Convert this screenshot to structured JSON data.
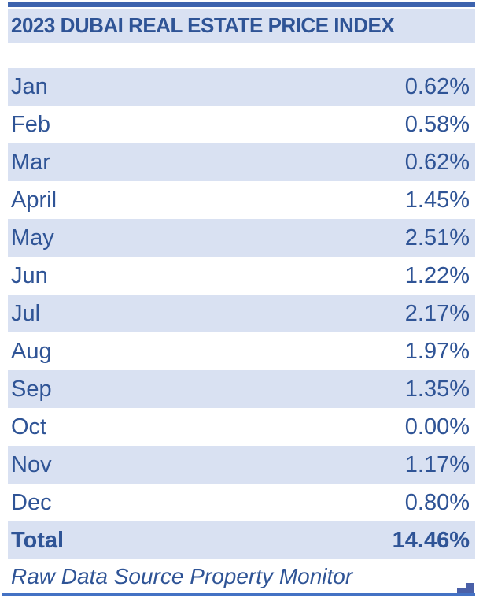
{
  "header": {
    "title": "2023 DUBAI REAL ESTATE PRICE INDEX"
  },
  "table": {
    "rows": [
      {
        "label": "Jan",
        "value": "0.62%"
      },
      {
        "label": "Feb",
        "value": "0.58%"
      },
      {
        "label": "Mar",
        "value": "0.62%"
      },
      {
        "label": "April",
        "value": "1.45%"
      },
      {
        "label": "May",
        "value": "2.51%"
      },
      {
        "label": "Jun",
        "value": "1.22%"
      },
      {
        "label": "Jul",
        "value": "2.17%"
      },
      {
        "label": "Aug",
        "value": "1.97%"
      },
      {
        "label": "Sep",
        "value": "1.35%"
      },
      {
        "label": "Oct",
        "value": "0.00%"
      },
      {
        "label": "Nov",
        "value": "1.17%"
      },
      {
        "label": "Dec",
        "value": "0.80%"
      }
    ],
    "total": {
      "label": "Total",
      "value": "14.46%"
    }
  },
  "footer": {
    "source_note": "Raw Data Source Property Monitor"
  },
  "colors": {
    "text_blue": "#2F5496",
    "row_fill": "#D9E1F2",
    "top_bar": "#3D63AE",
    "bottom_rule": "#4472C4",
    "corner_glyph": "#4A60A8"
  },
  "chart_data": {
    "type": "table",
    "title": "2023 DUBAI REAL ESTATE PRICE INDEX",
    "categories": [
      "Jan",
      "Feb",
      "Mar",
      "April",
      "May",
      "Jun",
      "Jul",
      "Aug",
      "Sep",
      "Oct",
      "Nov",
      "Dec"
    ],
    "values": [
      0.62,
      0.58,
      0.62,
      1.45,
      2.51,
      1.22,
      2.17,
      1.97,
      1.35,
      0.0,
      1.17,
      0.8
    ],
    "unit": "%",
    "total": 14.46,
    "source": "Raw Data Source Property Monitor"
  }
}
